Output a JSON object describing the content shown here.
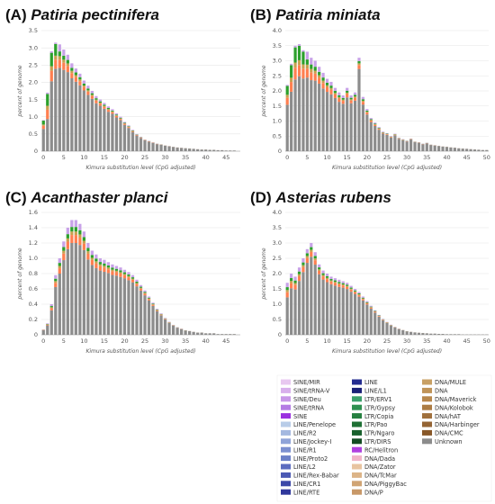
{
  "chart_data": [
    {
      "type": "bar",
      "panel_label": "(A)",
      "title": "Patiria pectinifera",
      "xlabel": "Kimura substitution level (CpG adjusted)",
      "ylabel": "percent of genome",
      "xlim": [
        0,
        48
      ],
      "xticks": [
        0,
        5,
        10,
        15,
        20,
        25,
        30,
        35,
        40,
        45
      ],
      "ylim": [
        0,
        3.5
      ],
      "yticks": [
        "0",
        "0.5",
        "1.0",
        "1.5",
        "2.0",
        "2.5",
        "3.0",
        "3.5"
      ],
      "x": [
        0,
        1,
        2,
        3,
        4,
        5,
        6,
        7,
        8,
        9,
        10,
        11,
        12,
        13,
        14,
        15,
        16,
        17,
        18,
        19,
        20,
        21,
        22,
        23,
        24,
        25,
        26,
        27,
        28,
        29,
        30,
        31,
        32,
        33,
        34,
        35,
        36,
        37,
        38,
        39,
        40,
        41,
        42,
        43,
        44,
        45,
        46,
        47
      ],
      "totals": [
        0.9,
        1.7,
        2.9,
        3.15,
        3.1,
        2.95,
        2.8,
        2.55,
        2.4,
        2.25,
        2.05,
        1.9,
        1.75,
        1.6,
        1.5,
        1.4,
        1.3,
        1.22,
        1.1,
        1.0,
        0.85,
        0.75,
        0.62,
        0.5,
        0.42,
        0.34,
        0.3,
        0.26,
        0.22,
        0.2,
        0.17,
        0.15,
        0.13,
        0.11,
        0.1,
        0.09,
        0.08,
        0.07,
        0.06,
        0.05,
        0.05,
        0.04,
        0.04,
        0.03,
        0.03,
        0.02,
        0.02,
        0.02
      ],
      "unknown_fraction": [
        0.72,
        0.55,
        0.7,
        0.76,
        0.78,
        0.8,
        0.82,
        0.83,
        0.84,
        0.85,
        0.86,
        0.86,
        0.87,
        0.87,
        0.88,
        0.88,
        0.88,
        0.89,
        0.89,
        0.9,
        0.9,
        0.9,
        0.9,
        0.91,
        0.91,
        0.92,
        0.92,
        0.92,
        0.93,
        0.93,
        0.93,
        0.94,
        0.94,
        0.94,
        0.94,
        0.95,
        0.95,
        0.95,
        0.95,
        0.95,
        0.95,
        0.95,
        0.95,
        0.95,
        0.95,
        0.95,
        0.95,
        0.95
      ],
      "notable_colors": [
        "#2ca02c",
        "#ff7f50"
      ]
    },
    {
      "type": "bar",
      "panel_label": "(B)",
      "title": "Patiria miniata",
      "xlabel": "Kimura substitution level (CpG adjusted)",
      "ylabel": "percent of genome",
      "xlim": [
        0,
        50
      ],
      "xticks": [
        0,
        5,
        10,
        15,
        20,
        25,
        30,
        35,
        40,
        45,
        50
      ],
      "ylim": [
        0,
        4.0
      ],
      "yticks": [
        "0",
        "0.5",
        "1.0",
        "1.5",
        "2.0",
        "2.5",
        "3.0",
        "3.5",
        "4.0"
      ],
      "x": [
        0,
        1,
        2,
        3,
        4,
        5,
        6,
        7,
        8,
        9,
        10,
        11,
        12,
        13,
        14,
        15,
        16,
        17,
        18,
        19,
        20,
        21,
        22,
        23,
        24,
        25,
        26,
        27,
        28,
        29,
        30,
        31,
        32,
        33,
        34,
        35,
        36,
        37,
        38,
        39,
        40,
        41,
        42,
        43,
        44,
        45,
        46,
        47,
        48,
        49,
        50
      ],
      "totals": [
        2.2,
        2.9,
        3.5,
        3.55,
        3.35,
        3.3,
        3.1,
        3.0,
        2.8,
        2.6,
        2.4,
        2.3,
        2.1,
        1.95,
        1.85,
        2.1,
        1.85,
        1.95,
        3.1,
        1.8,
        1.4,
        1.1,
        0.95,
        0.8,
        0.65,
        0.6,
        0.5,
        0.58,
        0.45,
        0.4,
        0.35,
        0.42,
        0.32,
        0.3,
        0.25,
        0.28,
        0.22,
        0.2,
        0.18,
        0.16,
        0.15,
        0.13,
        0.12,
        0.1,
        0.09,
        0.08,
        0.07,
        0.06,
        0.05,
        0.04,
        0.04
      ],
      "unknown_fraction": [
        0.7,
        0.68,
        0.68,
        0.7,
        0.72,
        0.74,
        0.76,
        0.78,
        0.8,
        0.8,
        0.82,
        0.82,
        0.84,
        0.84,
        0.85,
        0.85,
        0.86,
        0.86,
        0.88,
        0.86,
        0.87,
        0.88,
        0.88,
        0.89,
        0.9,
        0.9,
        0.9,
        0.91,
        0.91,
        0.92,
        0.92,
        0.92,
        0.93,
        0.93,
        0.93,
        0.94,
        0.94,
        0.94,
        0.95,
        0.95,
        0.95,
        0.95,
        0.95,
        0.95,
        0.95,
        0.95,
        0.95,
        0.95,
        0.95,
        0.95,
        0.95
      ],
      "notable_colors": [
        "#2ca02c",
        "#ff7f50"
      ]
    },
    {
      "type": "bar",
      "panel_label": "(C)",
      "title": "Acanthaster planci",
      "xlabel": "Kimura substitution level (CpG adjusted)",
      "ylabel": "percent of genome",
      "xlim": [
        0,
        48
      ],
      "xticks": [
        0,
        5,
        10,
        15,
        20,
        25,
        30,
        35,
        40,
        45
      ],
      "ylim": [
        0,
        1.6
      ],
      "yticks": [
        "0",
        "0.2",
        "0.4",
        "0.6",
        "0.8",
        "1.0",
        "1.2",
        "1.4",
        "1.6"
      ],
      "x": [
        0,
        1,
        2,
        3,
        4,
        5,
        6,
        7,
        8,
        9,
        10,
        11,
        12,
        13,
        14,
        15,
        16,
        17,
        18,
        19,
        20,
        21,
        22,
        23,
        24,
        25,
        26,
        27,
        28,
        29,
        30,
        31,
        32,
        33,
        34,
        35,
        36,
        37,
        38,
        39,
        40,
        41,
        42,
        43,
        44,
        45,
        46,
        47
      ],
      "totals": [
        0.07,
        0.15,
        0.4,
        0.78,
        1.0,
        1.22,
        1.4,
        1.5,
        1.5,
        1.45,
        1.35,
        1.2,
        1.1,
        1.05,
        1.0,
        0.98,
        0.95,
        0.92,
        0.9,
        0.88,
        0.85,
        0.82,
        0.78,
        0.72,
        0.65,
        0.58,
        0.5,
        0.42,
        0.34,
        0.28,
        0.22,
        0.17,
        0.13,
        0.1,
        0.08,
        0.06,
        0.05,
        0.04,
        0.03,
        0.03,
        0.02,
        0.02,
        0.02,
        0.01,
        0.01,
        0.01,
        0.01,
        0.01
      ],
      "unknown_fraction": [
        0.85,
        0.82,
        0.8,
        0.8,
        0.8,
        0.8,
        0.8,
        0.8,
        0.8,
        0.81,
        0.82,
        0.82,
        0.83,
        0.83,
        0.84,
        0.84,
        0.85,
        0.85,
        0.86,
        0.86,
        0.87,
        0.87,
        0.88,
        0.88,
        0.89,
        0.89,
        0.9,
        0.9,
        0.91,
        0.91,
        0.92,
        0.92,
        0.93,
        0.93,
        0.93,
        0.94,
        0.94,
        0.94,
        0.94,
        0.95,
        0.95,
        0.95,
        0.95,
        0.95,
        0.95,
        0.95,
        0.95,
        0.95
      ],
      "notable_colors": [
        "#ff7f50",
        "#c8b464"
      ]
    },
    {
      "type": "bar",
      "panel_label": "(D)",
      "title": "Asterias rubens",
      "xlabel": "Kimura substitution level (CpG adjusted)",
      "ylabel": "percent of genome",
      "xlim": [
        0,
        50
      ],
      "xticks": [
        0,
        5,
        10,
        15,
        20,
        25,
        30,
        35,
        40,
        45,
        50
      ],
      "ylim": [
        0,
        4.0
      ],
      "yticks": [
        "0",
        "0.5",
        "1.0",
        "1.5",
        "2.0",
        "2.5",
        "3.0",
        "3.5",
        "4.0"
      ],
      "x": [
        0,
        1,
        2,
        3,
        4,
        5,
        6,
        7,
        8,
        9,
        10,
        11,
        12,
        13,
        14,
        15,
        16,
        17,
        18,
        19,
        20,
        21,
        22,
        23,
        24,
        25,
        26,
        27,
        28,
        29,
        30,
        31,
        32,
        33,
        34,
        35,
        36,
        37,
        38,
        39,
        40,
        41,
        42,
        43,
        44,
        45,
        46,
        47,
        48,
        49,
        50
      ],
      "totals": [
        1.7,
        2.0,
        1.9,
        2.2,
        2.5,
        2.8,
        3.0,
        2.7,
        2.3,
        2.1,
        2.0,
        1.9,
        1.85,
        1.8,
        1.75,
        1.7,
        1.6,
        1.5,
        1.4,
        1.25,
        1.1,
        0.95,
        0.8,
        0.65,
        0.52,
        0.42,
        0.33,
        0.26,
        0.2,
        0.16,
        0.12,
        0.1,
        0.08,
        0.07,
        0.06,
        0.05,
        0.04,
        0.04,
        0.03,
        0.03,
        0.02,
        0.02,
        0.02,
        0.02,
        0.01,
        0.01,
        0.01,
        0.01,
        0.01,
        0.01,
        0.01
      ],
      "unknown_fraction": [
        0.72,
        0.76,
        0.78,
        0.8,
        0.82,
        0.84,
        0.85,
        0.85,
        0.86,
        0.86,
        0.86,
        0.87,
        0.87,
        0.87,
        0.88,
        0.88,
        0.88,
        0.89,
        0.89,
        0.9,
        0.9,
        0.9,
        0.91,
        0.91,
        0.92,
        0.92,
        0.92,
        0.93,
        0.93,
        0.93,
        0.94,
        0.94,
        0.94,
        0.94,
        0.95,
        0.95,
        0.95,
        0.95,
        0.95,
        0.95,
        0.95,
        0.95,
        0.95,
        0.95,
        0.95,
        0.95,
        0.95,
        0.95,
        0.95,
        0.95,
        0.95
      ],
      "notable_colors": [
        "#d8b4fe",
        "#ff7f50"
      ]
    }
  ],
  "stack_colors": {
    "unknown": "#8c8c8c",
    "coral": "#ff7f50",
    "green": "#2ca02c",
    "violet": "#c8a2e8",
    "gold": "#c8a050"
  },
  "legend": {
    "columns": [
      [
        {
          "label": "SINE/MIR",
          "color": "#e8c8f0"
        },
        {
          "label": "SINE/tRNA-V",
          "color": "#d8b0ec"
        },
        {
          "label": "SINE/Deu",
          "color": "#c898e8"
        },
        {
          "label": "SINE/tRNA",
          "color": "#b47ce4"
        },
        {
          "label": "SINE",
          "color": "#9b30e0"
        },
        {
          "label": "LINE/Penelope",
          "color": "#b8cce8"
        },
        {
          "label": "LINE/R2",
          "color": "#a4b8e0"
        },
        {
          "label": "LINE/Jockey-I",
          "color": "#90a4d8"
        },
        {
          "label": "LINE/R1",
          "color": "#7c90d0"
        },
        {
          "label": "LINE/Proto2",
          "color": "#6c80c8"
        },
        {
          "label": "LINE/L2",
          "color": "#5c6cc0"
        },
        {
          "label": "LINE/Rex-Babar",
          "color": "#4c5ab4"
        },
        {
          "label": "LINE/CR1",
          "color": "#3c48a8"
        },
        {
          "label": "LINE/RTE",
          "color": "#30389c"
        }
      ],
      [
        {
          "label": "LINE",
          "color": "#242c90"
        },
        {
          "label": "LINE/L1",
          "color": "#1a2078"
        },
        {
          "label": "LTR/ERV1",
          "color": "#3ca06c"
        },
        {
          "label": "LTR/Gypsy",
          "color": "#2e9050"
        },
        {
          "label": "LTR/Copia",
          "color": "#268040"
        },
        {
          "label": "LTR/Pao",
          "color": "#1e7034"
        },
        {
          "label": "LTR/Ngaro",
          "color": "#18602c"
        },
        {
          "label": "LTR/DIRS",
          "color": "#124c22"
        },
        {
          "label": "RC/Helitron",
          "color": "#b040e0"
        },
        {
          "label": "DNA/Dada",
          "color": "#f0b4c8"
        },
        {
          "label": "DNA/Zator",
          "color": "#e8c4a0"
        },
        {
          "label": "DNA/TcMar",
          "color": "#dcb488"
        },
        {
          "label": "DNA/PiggyBac",
          "color": "#d0a474"
        },
        {
          "label": "DNA/P",
          "color": "#c89868"
        }
      ],
      [
        {
          "label": "DNA/MULE",
          "color": "#c8a064"
        },
        {
          "label": "DNA",
          "color": "#c09458"
        },
        {
          "label": "DNA/Maverick",
          "color": "#b8884c"
        },
        {
          "label": "DNA/Kolobok",
          "color": "#ac7c44"
        },
        {
          "label": "DNA/hAT",
          "color": "#a0703c"
        },
        {
          "label": "DNA/Harbinger",
          "color": "#946434"
        },
        {
          "label": "DNA/CMC",
          "color": "#885828"
        },
        {
          "label": "Unknown",
          "color": "#8c8c8c"
        }
      ]
    ]
  }
}
